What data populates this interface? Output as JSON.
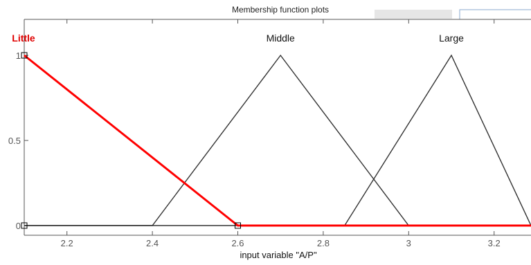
{
  "panel": {
    "title": "Membership function plots",
    "scrollbar_color": "#e6e6e6",
    "box_color": "#8aa9cf"
  },
  "colors": {
    "active_curve": "#ff0000",
    "inactive_curve": "#333333",
    "axis": "#555555"
  },
  "chart_data": {
    "type": "line",
    "xlabel": "input variable \"A/P\"",
    "xlim": [
      2.1,
      3.3
    ],
    "ylim": [
      0,
      1
    ],
    "x_ticks": [
      "2.2",
      "2.4",
      "2.6",
      "2.8",
      "3",
      "3.2"
    ],
    "y_ticks": [
      "0",
      "0.5",
      "1"
    ],
    "grid": false,
    "selected": "Little",
    "series": [
      {
        "name": "Little",
        "active": true,
        "x": [
          2.1,
          2.6,
          3.3
        ],
        "y": [
          1,
          0,
          0
        ],
        "handles": [
          [
            2.1,
            1
          ],
          [
            2.1,
            0
          ],
          [
            2.6,
            0
          ]
        ]
      },
      {
        "name": "Middle",
        "active": false,
        "x": [
          2.1,
          2.4,
          2.7,
          3.0,
          3.3
        ],
        "y": [
          0,
          0,
          1,
          0,
          0
        ]
      },
      {
        "name": "Large",
        "active": false,
        "x": [
          2.1,
          2.85,
          3.1,
          3.35
        ],
        "y": [
          0,
          0,
          1,
          0
        ]
      }
    ]
  }
}
